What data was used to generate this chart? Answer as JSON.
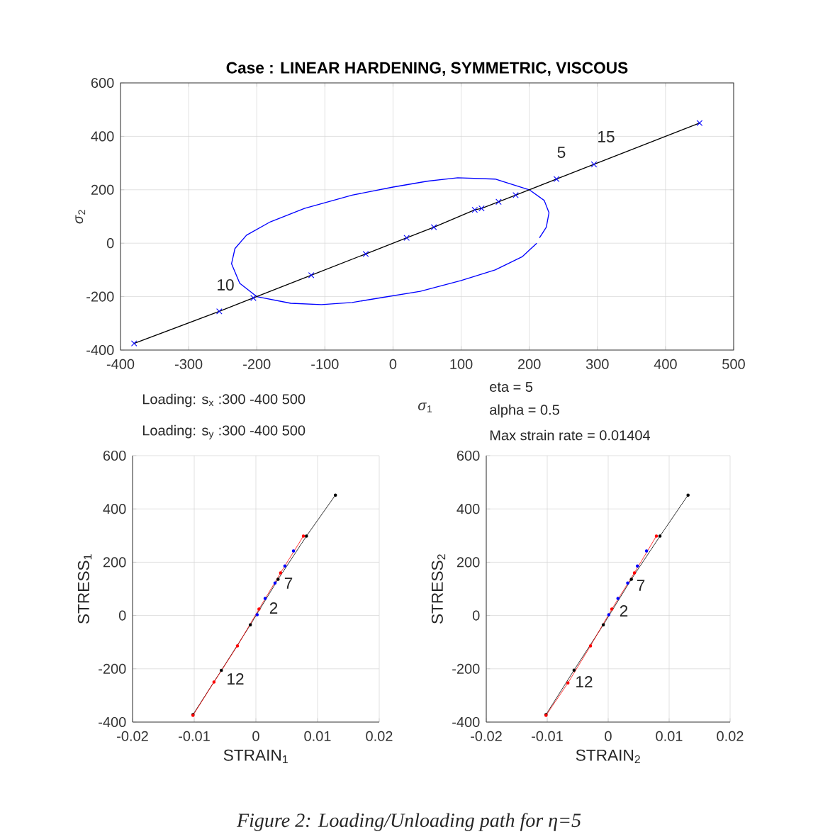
{
  "chart_data": [
    {
      "type": "line",
      "title": "Case : LINEAR HARDENING, SYMMETRIC, VISCOUS",
      "xlabel": "*σ*$_{1}$",
      "ylabel": "*σ*$_{2}$",
      "xlim": [
        -400,
        500
      ],
      "ylim": [
        -400,
        600
      ],
      "xticks": [
        -400,
        -300,
        -200,
        -100,
        0,
        100,
        200,
        300,
        400,
        500
      ],
      "yticks": [
        -400,
        -200,
        0,
        200,
        400,
        600
      ],
      "grid": true,
      "series": [
        {
          "color": "#0000ff",
          "marker": "none",
          "x": [
            211,
            190,
            150,
            100,
            40,
            -20,
            -60,
            -105,
            -150,
            -200,
            -225,
            -237,
            -232,
            -215,
            -180,
            -130,
            -60,
            0,
            50,
            95,
            150,
            200,
            222,
            229,
            225,
            215
          ],
          "values": [
            0,
            -50,
            -100,
            -140,
            -180,
            -205,
            -222,
            -230,
            -225,
            -200,
            -150,
            -77,
            -20,
            30,
            80,
            130,
            180,
            210,
            232,
            245,
            240,
            200,
            160,
            114,
            60,
            20
          ]
        },
        {
          "color": "#000000",
          "marker": "none",
          "x": [
            -380,
            -255,
            -205,
            -120,
            -40,
            20,
            60,
            120,
            130,
            155,
            180,
            240,
            295,
            450
          ],
          "values": [
            -375,
            -255,
            -205,
            -120,
            -40,
            20,
            60,
            125,
            130,
            155,
            180,
            240,
            295,
            450
          ]
        },
        {
          "type": "scatter",
          "color": "#0000ff",
          "marker": "cross",
          "x": [
            -380,
            -255,
            -205,
            -120,
            -40,
            20,
            60,
            120,
            130,
            155,
            180,
            240,
            295,
            450
          ],
          "values": [
            -375,
            -255,
            -205,
            -120,
            -40,
            20,
            60,
            125,
            130,
            155,
            180,
            240,
            295,
            450
          ]
        }
      ],
      "annotations": [
        "10",
        "5",
        "15",
        "Loading: s$_{x}$ :300 -400 500",
        "Loading: s$_{y}$ :300 -400 500",
        "eta = 5",
        "alpha = 0.5",
        "Max strain rate = 0.01404",
        "Figure 2: Loading/Unloading path for η=5"
      ]
    },
    {
      "type": "line",
      "xlabel": "STRAIN$_{1}$",
      "ylabel": "STRESS$_{1}$",
      "xlim": [
        -0.02,
        0.02
      ],
      "ylim": [
        -400,
        600
      ],
      "xticks": [
        -0.02,
        -0.01,
        0,
        0.01,
        0.02
      ],
      "yticks": [
        -400,
        -200,
        0,
        200,
        400,
        600
      ],
      "grid": true,
      "series": [
        {
          "color": "#000000",
          "marker": "circle",
          "x": [
            -0.0102,
            -0.0056,
            -0.0009,
            0.0036,
            0.0082,
            0.0129
          ],
          "values": [
            -372,
            -206,
            -35,
            136,
            298,
            452
          ]
        },
        {
          "color": "#ff0000",
          "marker": "circle",
          "x": [
            -0.0102,
            -0.0068,
            -0.003,
            0.0005,
            0.004,
            0.0077
          ],
          "values": [
            -375,
            -250,
            -114,
            24,
            160,
            298
          ]
        },
        {
          "type": "scatter",
          "color": "#0000ff",
          "marker": "circle",
          "x": [
            0.0002,
            0.0015,
            0.0031,
            0.0047,
            0.0061
          ],
          "values": [
            3,
            64,
            122,
            186,
            242
          ]
        }
      ],
      "annotations": [
        "7",
        "2",
        "12"
      ]
    },
    {
      "type": "line",
      "xlabel": "STRAIN$_{2}$",
      "ylabel": "STRESS$_{2}$",
      "xlim": [
        -0.02,
        0.02
      ],
      "ylim": [
        -400,
        600
      ],
      "xticks": [
        -0.02,
        -0.01,
        0,
        0.01,
        0.02
      ],
      "yticks": [
        -400,
        -200,
        0,
        200,
        400,
        600
      ],
      "grid": true,
      "series": [
        {
          "color": "#000000",
          "marker": "circle",
          "x": [
            -0.0102,
            -0.0056,
            -0.0008,
            0.0038,
            0.0085,
            0.0131
          ],
          "values": [
            -372,
            -205,
            -35,
            136,
            298,
            452
          ]
        },
        {
          "color": "#ff0000",
          "marker": "circle",
          "x": [
            -0.0102,
            -0.0066,
            -0.0029,
            0.0006,
            0.0043,
            0.0079
          ],
          "values": [
            -375,
            -253,
            -114,
            24,
            160,
            298
          ]
        },
        {
          "type": "scatter",
          "color": "#0000ff",
          "marker": "circle",
          "x": [
            0.0001,
            0.0016,
            0.0032,
            0.0048,
            0.0063
          ],
          "values": [
            3,
            64,
            122,
            186,
            242
          ]
        }
      ],
      "annotations": [
        "7",
        "2",
        "12"
      ]
    }
  ]
}
